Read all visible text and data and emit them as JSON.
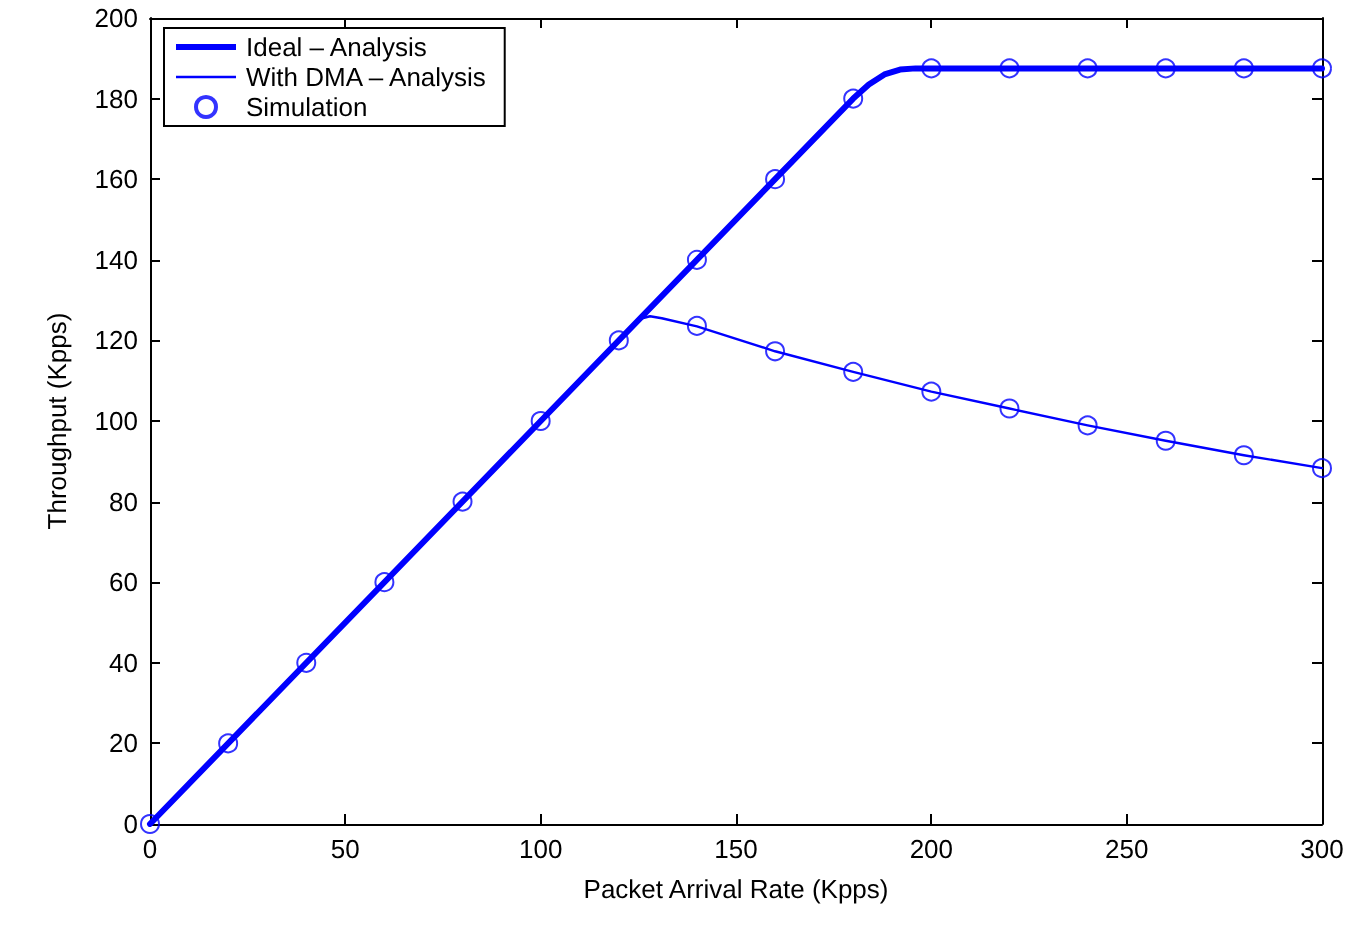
{
  "chart_data": {
    "type": "line",
    "xlabel": "Packet Arrival Rate (Kpps)",
    "ylabel": "Throughput (Kpps)",
    "xlim": [
      0,
      300
    ],
    "xticks": [
      0,
      50,
      100,
      150,
      200,
      250,
      300
    ],
    "ylim": [
      0,
      200
    ],
    "yticks": [
      0,
      20,
      40,
      60,
      80,
      100,
      120,
      140,
      160,
      180,
      200
    ],
    "grid": false,
    "legend": "top left",
    "series": [
      {
        "name": "Ideal – Analysis",
        "color": "#0000ff",
        "marker": "none",
        "x": [
          0,
          180,
          184,
          188,
          192,
          196,
          300
        ],
        "values": [
          0,
          180,
          183.5,
          186,
          187.2,
          187.5,
          187.5
        ]
      },
      {
        "name": "With DMA – Analysis",
        "color": "#0000ff",
        "marker": "none",
        "x": [
          0,
          124,
          126,
          128,
          131,
          140,
          160,
          180,
          200,
          220,
          240,
          260,
          280,
          300
        ],
        "values": [
          0,
          124,
          125.5,
          126,
          125.5,
          123.5,
          117.3,
          112.2,
          107.3,
          103.1,
          98.9,
          95.1,
          91.5,
          88.3
        ]
      },
      {
        "name": "Simulation",
        "type": "scatter",
        "color": "#0000ff",
        "marker": "circle",
        "x": [
          0,
          20,
          40,
          60,
          80,
          100,
          120,
          140,
          160,
          180,
          200,
          220,
          240,
          260,
          280,
          300,
          140,
          160,
          180,
          200,
          220,
          240,
          260,
          280,
          300
        ],
        "values": [
          0,
          20,
          40,
          60,
          80,
          100,
          120,
          140,
          160,
          180,
          187.5,
          187.5,
          187.5,
          187.5,
          187.5,
          187.5,
          123.6,
          117.3,
          112.2,
          107.3,
          103.1,
          98.9,
          95.1,
          91.5,
          88.3
        ]
      }
    ]
  }
}
